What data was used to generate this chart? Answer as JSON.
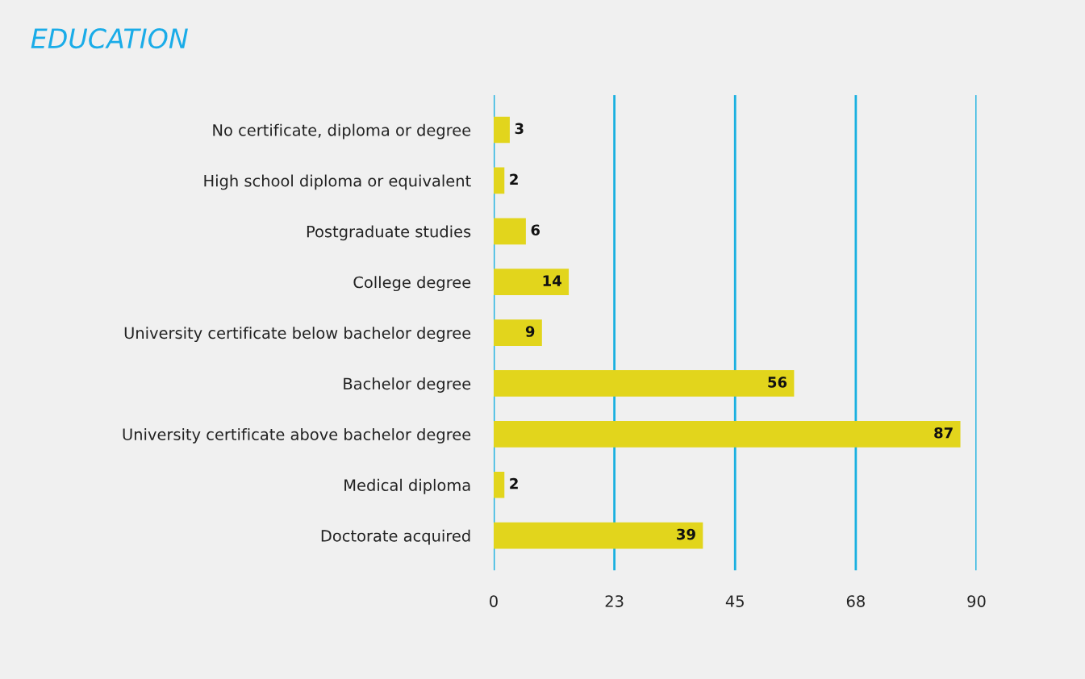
{
  "chart_data": {
    "type": "bar",
    "orientation": "horizontal",
    "title": "EDUCATION",
    "categories": [
      "No certificate, diploma or degree",
      "High school diploma or equivalent",
      "Postgraduate studies",
      "College degree",
      "University certificate below bachelor degree",
      "Bachelor degree",
      "University certificate above bachelor degree",
      "Medical diploma",
      "Doctorate acquired"
    ],
    "values": [
      3,
      2,
      6,
      14,
      9,
      56,
      87,
      2,
      39
    ],
    "color": "#e2d51c",
    "xlim": [
      0,
      90
    ],
    "xticks": [
      0,
      {
        "value": 22.5,
        "label": "23"
      },
      45,
      {
        "value": 67.5,
        "label": "68"
      },
      90
    ],
    "grid": "x",
    "data_labels": true
  }
}
